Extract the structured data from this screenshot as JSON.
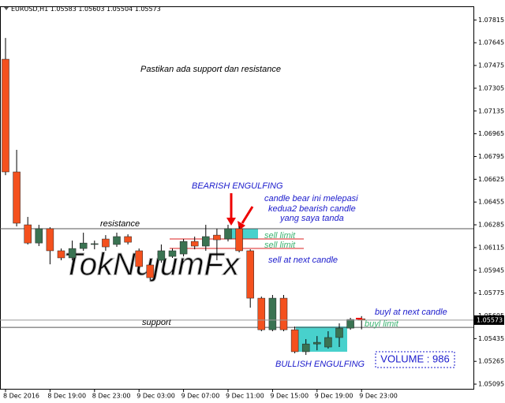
{
  "chart_data": {
    "type": "candlestick",
    "symbol": "EURUSD,H1",
    "categories": [
      "8 Dec 2016",
      null,
      null,
      null,
      "8 Dec 19:00",
      null,
      null,
      null,
      "8 Dec 23:00",
      null,
      null,
      null,
      "9 Dec 03:00",
      null,
      null,
      null,
      "9 Dec 07:00",
      null,
      null,
      null,
      "9 Dec 11:00",
      null,
      null,
      null,
      "9 Dec 15:00",
      null,
      null,
      null,
      "9 Dec 19:00",
      null,
      null,
      null,
      "9 Dec 23:00"
    ],
    "open": [
      1.07522,
      1.0668,
      1.06285,
      1.06149,
      1.06256,
      1.06091,
      1.06038,
      1.06108,
      1.06138,
      1.06179,
      1.06138,
      1.06197,
      1.06091,
      1.05985,
      1.0602,
      1.06049,
      1.06067,
      1.06161,
      1.06126,
      1.06208,
      1.06179,
      1.06256,
      1.06091,
      1.05737,
      1.05501,
      1.05737,
      1.05501,
      1.05337,
      1.05395,
      1.05372,
      1.05443,
      1.05513,
      1.05583
    ],
    "high": [
      1.07681,
      1.06845,
      1.06344,
      1.06285,
      1.06267,
      1.06108,
      1.06167,
      1.06226,
      1.06167,
      1.06208,
      1.06226,
      1.06214,
      1.06108,
      1.0602,
      1.06138,
      1.06108,
      1.06179,
      1.06197,
      1.06285,
      1.06256,
      1.06285,
      1.06273,
      1.06102,
      1.05749,
      1.05761,
      1.05761,
      1.05525,
      1.05431,
      1.05454,
      1.0549,
      1.05549,
      1.0559,
      1.05603
    ],
    "low": [
      1.06656,
      1.06273,
      1.06138,
      1.06126,
      1.0599,
      1.0602,
      1.0602,
      1.06091,
      1.06102,
      1.06091,
      1.0612,
      1.06138,
      1.05949,
      1.05873,
      1.06002,
      1.06038,
      1.06049,
      1.06102,
      1.06091,
      1.0602,
      1.06161,
      1.06079,
      1.05666,
      1.0549,
      1.0549,
      1.0549,
      1.05325,
      1.05313,
      1.05348,
      1.0536,
      1.05372,
      1.05501,
      1.05504
    ],
    "close": [
      1.0668,
      1.06297,
      1.06149,
      1.06256,
      1.06091,
      1.06038,
      1.06108,
      1.06149,
      1.06144,
      1.0612,
      1.06197,
      1.06155,
      1.05973,
      1.0589,
      1.06091,
      1.06091,
      1.06161,
      1.06126,
      1.06197,
      1.06173,
      1.06256,
      1.06091,
      1.05737,
      1.05501,
      1.05737,
      1.05501,
      1.05337,
      1.05395,
      1.05407,
      1.05443,
      1.05513,
      1.05578,
      1.05573
    ],
    "up_color": "#3a7352",
    "down_color": "#f4511e",
    "ylim": [
      1.0506,
      1.07917
    ],
    "yticks": [
      1.05095,
      1.05265,
      1.05435,
      1.05605,
      1.05775,
      1.05945,
      1.06115,
      1.06285,
      1.06455,
      1.06625,
      1.06795,
      1.06965,
      1.07135,
      1.07305,
      1.07475,
      1.07645,
      1.07815
    ],
    "hlines": [
      {
        "label": "resistance",
        "value": 1.06256
      },
      {
        "label": "support",
        "value": 1.05519
      }
    ],
    "watermark": "TokNujumFx",
    "annotations": [
      "Pastikan ada support dan resistance",
      "BEARISH ENGULFING",
      "candle bear ini melepasi",
      "kedua2 bearish candle",
      "yang saya tanda",
      "sell limit",
      "sell limit",
      "sell at next candle",
      "buyl at next candle",
      "buyl limit",
      "BULLISH ENGULFING"
    ],
    "volume_label": "VOLUME  :  986"
  }
}
